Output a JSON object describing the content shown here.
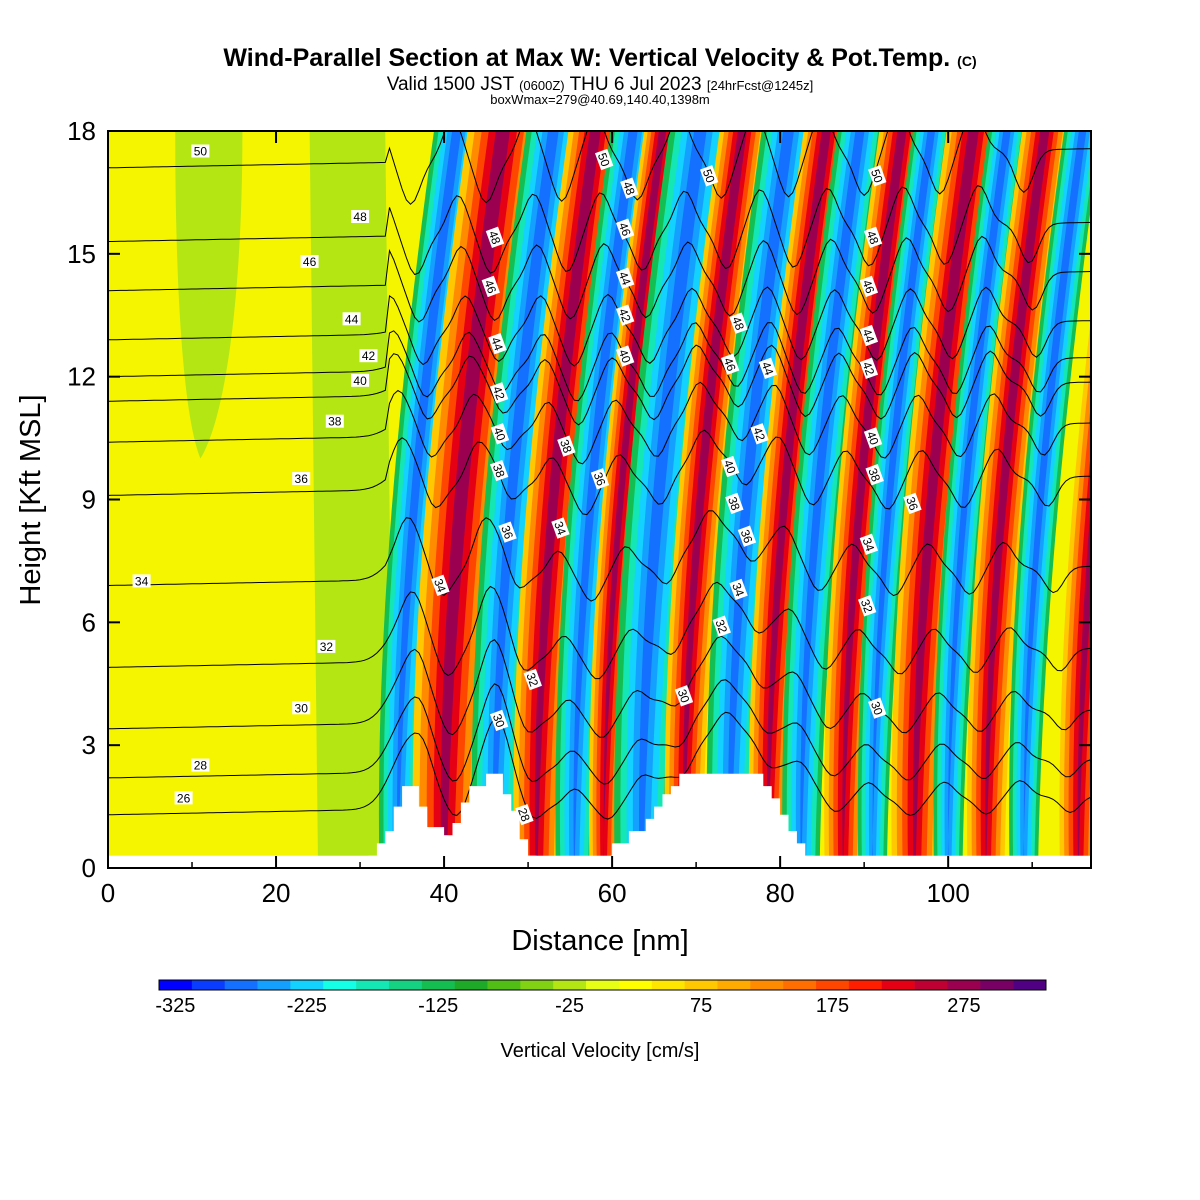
{
  "title": "Wind-Parallel Section at Max W: Vertical Velocity & Pot.Temp.",
  "title_mark": "(C)",
  "valid_main": "Valid 1500 JST",
  "valid_zulu": "(0600Z)",
  "valid_date": "THU 6 Jul 2023",
  "valid_fcst": "[24hrFcst@1245z]",
  "boxwmax": "boxWmax=279@40.69,140.40,1398m",
  "chart_data": {
    "type": "heatmap",
    "xlabel": "Distance [nm]",
    "ylabel": "Height [Kft MSL]",
    "xlim": [
      0,
      117
    ],
    "ylim": [
      0,
      18
    ],
    "xticks": [
      0,
      20,
      40,
      60,
      80,
      100
    ],
    "yticks": [
      0,
      3,
      6,
      9,
      12,
      15,
      18
    ],
    "colorbar": {
      "label": "Vertical Velocity [cm/s]",
      "tick_values": [
        -325,
        -225,
        -125,
        -25,
        75,
        175,
        275
      ],
      "tick_labels": [
        "-325",
        "-225",
        "-125",
        "-25",
        "75",
        "175",
        "275"
      ],
      "colors": [
        "#0000ff",
        "#0a3cff",
        "#1470ff",
        "#14a0ff",
        "#14d2ff",
        "#14ffe6",
        "#14e6b4",
        "#14d282",
        "#14be50",
        "#1eaa28",
        "#50be14",
        "#82d214",
        "#b4e614",
        "#e6ff14",
        "#ffff00",
        "#ffe600",
        "#ffc800",
        "#ffaa00",
        "#ff8c00",
        "#ff6e00",
        "#ff4600",
        "#ff1e00",
        "#e60014",
        "#be0032",
        "#9b0050",
        "#780064",
        "#500082"
      ]
    },
    "wave_bands": [
      {
        "kind": "down",
        "x_start": 33,
        "x_end": 36
      },
      {
        "kind": "up",
        "x_start": 37,
        "x_end": 43
      },
      {
        "kind": "down",
        "x_start": 44,
        "x_end": 48
      },
      {
        "kind": "up",
        "x_start": 49,
        "x_end": 53
      },
      {
        "kind": "down",
        "x_start": 54,
        "x_end": 57
      },
      {
        "kind": "up",
        "x_start": 58,
        "x_end": 60
      },
      {
        "kind": "down",
        "x_start": 61,
        "x_end": 66
      },
      {
        "kind": "up",
        "x_start": 67,
        "x_end": 70
      },
      {
        "kind": "down",
        "x_start": 72,
        "x_end": 76
      },
      {
        "kind": "up",
        "x_start": 77,
        "x_end": 80
      },
      {
        "kind": "down",
        "x_start": 81,
        "x_end": 84
      },
      {
        "kind": "up",
        "x_start": 86,
        "x_end": 89
      },
      {
        "kind": "down",
        "x_start": 90,
        "x_end": 92
      },
      {
        "kind": "up",
        "x_start": 94,
        "x_end": 98
      },
      {
        "kind": "down",
        "x_start": 99,
        "x_end": 101
      },
      {
        "kind": "up",
        "x_start": 103,
        "x_end": 106
      },
      {
        "kind": "down",
        "x_start": 108,
        "x_end": 110
      },
      {
        "kind": "up",
        "x_start": 114,
        "x_end": 117
      }
    ],
    "terrain": [
      [
        31,
        0
      ],
      [
        31,
        0.3
      ],
      [
        32,
        0.3
      ],
      [
        32,
        0.6
      ],
      [
        33,
        0.6
      ],
      [
        33,
        0.9
      ],
      [
        34,
        0.9
      ],
      [
        34,
        1.5
      ],
      [
        35,
        1.5
      ],
      [
        35,
        2
      ],
      [
        37,
        2
      ],
      [
        37,
        1.5
      ],
      [
        38,
        1.5
      ],
      [
        38,
        1
      ],
      [
        40,
        1
      ],
      [
        40,
        0.8
      ],
      [
        41,
        0.8
      ],
      [
        41,
        1.1
      ],
      [
        42,
        1.1
      ],
      [
        42,
        1.6
      ],
      [
        43,
        1.6
      ],
      [
        43,
        2
      ],
      [
        45,
        2
      ],
      [
        45,
        2.3
      ],
      [
        47,
        2.3
      ],
      [
        47,
        1.8
      ],
      [
        48,
        1.8
      ],
      [
        48,
        1.4
      ],
      [
        49,
        1.4
      ],
      [
        49,
        0.7
      ],
      [
        50,
        0.7
      ],
      [
        50,
        0.3
      ],
      [
        51,
        0.3
      ],
      [
        51,
        0
      ],
      [
        60,
        0
      ],
      [
        60,
        0.6
      ],
      [
        62,
        0.6
      ],
      [
        62,
        0.9
      ],
      [
        64,
        0.9
      ],
      [
        64,
        1.2
      ],
      [
        65,
        1.2
      ],
      [
        65,
        1.5
      ],
      [
        66,
        1.5
      ],
      [
        66,
        1.8
      ],
      [
        67,
        1.8
      ],
      [
        67,
        2
      ],
      [
        68,
        2
      ],
      [
        68,
        2.3
      ],
      [
        70,
        2.3
      ],
      [
        70,
        2.3
      ],
      [
        78,
        2.3
      ],
      [
        78,
        2
      ],
      [
        79,
        2
      ],
      [
        79,
        1.7
      ],
      [
        80,
        1.7
      ],
      [
        80,
        1.3
      ],
      [
        81,
        1.3
      ],
      [
        81,
        0.9
      ],
      [
        82,
        0.9
      ],
      [
        82,
        0.6
      ],
      [
        83,
        0.6
      ],
      [
        83,
        0.3
      ],
      [
        84,
        0.3
      ],
      [
        84,
        0
      ]
    ],
    "theta_contours": [
      {
        "label": "26",
        "z_left": 1.3,
        "label_xy": [
          9,
          1.7
        ]
      },
      {
        "label": "28",
        "z_left": 2.2,
        "label_xy": [
          11,
          2.5
        ]
      },
      {
        "label": "30",
        "z_left": 3.4,
        "label_xy": [
          23,
          3.9
        ]
      },
      {
        "label": "32",
        "z_left": 4.9,
        "label_xy": [
          26,
          5.4
        ]
      },
      {
        "label": "34",
        "z_left": 6.9,
        "label_xy": [
          4,
          7.0
        ]
      },
      {
        "label": "36",
        "z_left": 9.1,
        "label_xy": [
          23,
          9.5
        ]
      },
      {
        "label": "38",
        "z_left": 10.4,
        "label_xy": [
          27,
          10.9
        ]
      },
      {
        "label": "40",
        "z_left": 11.4,
        "label_xy": [
          30,
          11.9
        ]
      },
      {
        "label": "42",
        "z_left": 12.0,
        "label_xy": [
          31,
          12.5
        ]
      },
      {
        "label": "44",
        "z_left": 12.9,
        "label_xy": [
          29,
          13.4
        ]
      },
      {
        "label": "46",
        "z_left": 14.1,
        "label_xy": [
          24,
          14.8
        ]
      },
      {
        "label": "48",
        "z_left": 15.3,
        "label_xy": [
          30,
          15.9
        ]
      },
      {
        "label": "50",
        "z_left": 17.1,
        "label_xy": [
          11,
          17.5
        ]
      }
    ],
    "inline_labels": [
      {
        "text": "48",
        "x": 46,
        "y": 15.4
      },
      {
        "text": "46",
        "x": 45.5,
        "y": 14.2
      },
      {
        "text": "44",
        "x": 46.3,
        "y": 12.8
      },
      {
        "text": "42",
        "x": 46.5,
        "y": 11.6
      },
      {
        "text": "40",
        "x": 46.6,
        "y": 10.6
      },
      {
        "text": "38",
        "x": 46.5,
        "y": 9.7
      },
      {
        "text": "36",
        "x": 47.5,
        "y": 8.2
      },
      {
        "text": "34",
        "x": 39.5,
        "y": 6.9
      },
      {
        "text": "32",
        "x": 50.5,
        "y": 4.6
      },
      {
        "text": "30",
        "x": 46.5,
        "y": 3.6
      },
      {
        "text": "28",
        "x": 49.5,
        "y": 1.3
      },
      {
        "text": "50",
        "x": 59,
        "y": 17.3
      },
      {
        "text": "48",
        "x": 62,
        "y": 16.6
      },
      {
        "text": "46",
        "x": 61.5,
        "y": 15.6
      },
      {
        "text": "44",
        "x": 61.5,
        "y": 14.4
      },
      {
        "text": "42",
        "x": 61.5,
        "y": 13.5
      },
      {
        "text": "40",
        "x": 61.5,
        "y": 12.5
      },
      {
        "text": "38",
        "x": 54.5,
        "y": 10.3
      },
      {
        "text": "36",
        "x": 58.5,
        "y": 9.5
      },
      {
        "text": "34",
        "x": 53.8,
        "y": 8.3
      },
      {
        "text": "50",
        "x": 71.5,
        "y": 16.9
      },
      {
        "text": "48",
        "x": 75,
        "y": 13.3
      },
      {
        "text": "46",
        "x": 74,
        "y": 12.3
      },
      {
        "text": "44",
        "x": 78.5,
        "y": 12.2
      },
      {
        "text": "42",
        "x": 77.5,
        "y": 10.6
      },
      {
        "text": "40",
        "x": 74,
        "y": 9.8
      },
      {
        "text": "38",
        "x": 74.5,
        "y": 8.9
      },
      {
        "text": "36",
        "x": 76,
        "y": 8.1
      },
      {
        "text": "34",
        "x": 75,
        "y": 6.8
      },
      {
        "text": "32",
        "x": 73,
        "y": 5.9
      },
      {
        "text": "30",
        "x": 68.5,
        "y": 4.2
      },
      {
        "text": "50",
        "x": 91.5,
        "y": 16.9
      },
      {
        "text": "48",
        "x": 91,
        "y": 15.4
      },
      {
        "text": "46",
        "x": 90.5,
        "y": 14.2
      },
      {
        "text": "44",
        "x": 90.5,
        "y": 13.0
      },
      {
        "text": "42",
        "x": 90.5,
        "y": 12.2
      },
      {
        "text": "40",
        "x": 91,
        "y": 10.5
      },
      {
        "text": "38",
        "x": 91.2,
        "y": 9.6
      },
      {
        "text": "36",
        "x": 95.7,
        "y": 8.9
      },
      {
        "text": "34",
        "x": 90.5,
        "y": 7.9
      },
      {
        "text": "32",
        "x": 90.3,
        "y": 6.4
      },
      {
        "text": "30",
        "x": 91.5,
        "y": 3.9
      }
    ]
  }
}
